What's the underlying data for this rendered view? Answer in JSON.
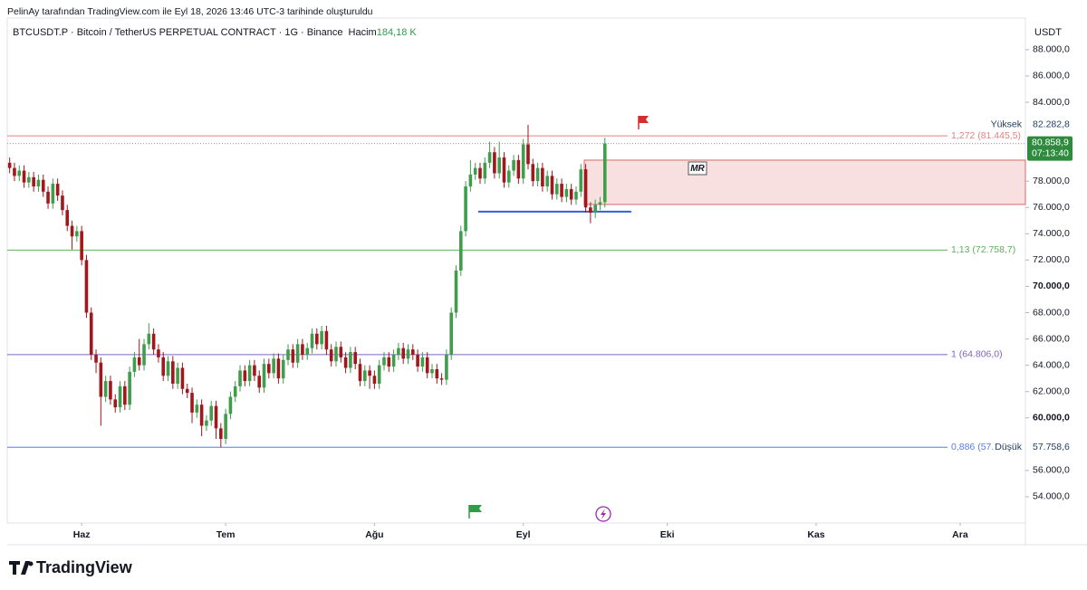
{
  "header": {
    "caption": "PelinAy tarafından TradingView.com ile Eyl 18, 2026 13:46 UTC-3 tarihinde oluşturuldu"
  },
  "chart_data": {
    "type": "candlestick",
    "title": "BTCUSDT.P · Bitcoin / TetherUS PERPETUAL CONTRACT · 1G · Binance",
    "volume_label": "Hacim",
    "volume_value": "184,18 K",
    "currency": "USDT",
    "up_color": "#3f9d4c",
    "down_color": "#a1171e",
    "open": [
      79400,
      79000,
      78400,
      78800,
      77900,
      78300,
      77600,
      78100,
      77200,
      76300,
      77800,
      76900,
      75800,
      74600,
      73800,
      74200,
      72000,
      68000,
      64800,
      64200,
      61600,
      62800,
      61400,
      60800,
      62400,
      61000,
      63500,
      64600,
      64000,
      65600,
      66400,
      65200,
      64600,
      63200,
      64300,
      62600,
      63800,
      62200,
      61900,
      60400,
      61000,
      59400,
      59800,
      60900,
      59200,
      58400,
      60300,
      61600,
      62400,
      63600,
      62800,
      64000,
      63200,
      62300,
      64100,
      63400,
      64500,
      63000,
      64400,
      65200,
      64200,
      65600,
      64800,
      65300,
      66400,
      65600,
      66600,
      65200,
      64300,
      65400,
      64600,
      63800,
      65000,
      64100,
      62800,
      63600,
      63200,
      62600,
      64000,
      64600,
      63900,
      64800,
      65300,
      64500,
      65200,
      64800,
      63900,
      64600,
      63400,
      63700,
      63000,
      62900,
      64800,
      68000,
      71200,
      74200,
      77600,
      78500,
      79000,
      78200,
      79400,
      80200,
      78600,
      79800,
      77900,
      78800,
      79600,
      78200,
      80800,
      79300,
      78000,
      79000,
      77600,
      78400,
      77000,
      77800,
      76800,
      77400,
      76600,
      77200,
      78900,
      76000,
      75600,
      76200,
      76400
    ],
    "high": [
      79800,
      79400,
      79200,
      79200,
      78700,
      78700,
      78500,
      78500,
      77600,
      78200,
      78200,
      77300,
      76200,
      75000,
      74600,
      74600,
      72400,
      68400,
      65200,
      64600,
      63200,
      63200,
      61800,
      62800,
      62800,
      63900,
      65000,
      66000,
      66000,
      67200,
      66800,
      65600,
      65000,
      64700,
      64700,
      64200,
      64200,
      62600,
      62300,
      61400,
      61400,
      60200,
      61300,
      61300,
      59600,
      60700,
      62000,
      62800,
      64000,
      64000,
      64400,
      64400,
      63600,
      64500,
      64500,
      64900,
      64900,
      64800,
      65600,
      65600,
      66000,
      66000,
      65700,
      66800,
      66800,
      67000,
      67000,
      65600,
      65800,
      65800,
      65000,
      65400,
      65400,
      64500,
      64000,
      64000,
      63600,
      64400,
      65000,
      65000,
      65200,
      65700,
      65700,
      65600,
      65600,
      65200,
      65000,
      65000,
      64100,
      64100,
      63400,
      65200,
      68400,
      71600,
      74600,
      78000,
      79600,
      79400,
      79400,
      79800,
      81000,
      80600,
      81000,
      80200,
      79200,
      80000,
      80000,
      81200,
      82282.8,
      79700,
      79400,
      79400,
      78800,
      78800,
      78200,
      78200,
      77800,
      77800,
      77600,
      79300,
      79300,
      76400,
      76600,
      76800,
      81300
    ],
    "low": [
      78600,
      78000,
      78000,
      77500,
      77500,
      77200,
      77200,
      76800,
      75900,
      75900,
      76500,
      75400,
      74200,
      72800,
      73400,
      71600,
      67600,
      64400,
      63400,
      59400,
      61200,
      61000,
      60400,
      60400,
      60600,
      60600,
      63100,
      63600,
      63600,
      65200,
      64800,
      64200,
      62800,
      62800,
      62200,
      62200,
      61800,
      61500,
      59600,
      60000,
      58600,
      59000,
      59400,
      58400,
      57758.6,
      58000,
      59900,
      61200,
      62000,
      62400,
      62400,
      62800,
      61900,
      61900,
      63000,
      63000,
      62600,
      62600,
      64000,
      63800,
      63800,
      64400,
      64400,
      64900,
      65200,
      65200,
      64800,
      63900,
      63900,
      64200,
      63400,
      63400,
      63700,
      62400,
      62400,
      62200,
      62200,
      62200,
      63600,
      63500,
      63500,
      64400,
      64100,
      64100,
      64400,
      63500,
      63500,
      63000,
      63000,
      62600,
      62500,
      62500,
      64400,
      67600,
      70800,
      73800,
      77200,
      78100,
      77800,
      77800,
      79000,
      78200,
      78200,
      77500,
      77500,
      78400,
      77800,
      77800,
      78900,
      77600,
      77600,
      77200,
      77200,
      76600,
      76600,
      76400,
      76400,
      76200,
      76200,
      76800,
      75600,
      74800,
      75200,
      75800,
      76000
    ],
    "close": [
      79000,
      78400,
      78800,
      77900,
      78300,
      77600,
      78100,
      77200,
      76300,
      77800,
      76900,
      75800,
      74600,
      73800,
      74200,
      72000,
      68000,
      64800,
      64200,
      61600,
      62800,
      61400,
      60800,
      62400,
      61000,
      63500,
      64600,
      64000,
      65600,
      66400,
      65200,
      64600,
      63200,
      64300,
      62600,
      63800,
      62200,
      61900,
      60400,
      61000,
      59400,
      59800,
      60900,
      59200,
      58400,
      60300,
      61600,
      62400,
      63600,
      62800,
      64000,
      63200,
      62300,
      64100,
      63400,
      64500,
      63000,
      64400,
      65200,
      64200,
      65600,
      64800,
      65300,
      66400,
      65600,
      66600,
      65200,
      64300,
      65400,
      64600,
      63800,
      65000,
      64100,
      62800,
      63600,
      63200,
      62600,
      64000,
      64600,
      63900,
      64800,
      65300,
      64500,
      65200,
      64800,
      63900,
      64600,
      63400,
      63700,
      63000,
      62900,
      64800,
      68000,
      71200,
      74200,
      77600,
      78500,
      79000,
      78200,
      79400,
      80200,
      78600,
      79800,
      77900,
      78800,
      79600,
      78200,
      80800,
      79300,
      78000,
      79000,
      77600,
      78400,
      77000,
      77800,
      76800,
      77400,
      76600,
      77200,
      78900,
      76000,
      75600,
      76200,
      76400,
      80858.9
    ],
    "xlim": [
      -0.5,
      211.6
    ],
    "xticks": [
      {
        "value": 15,
        "label": "Haz"
      },
      {
        "value": 45,
        "label": "Tem"
      },
      {
        "value": 76,
        "label": "Ağu"
      },
      {
        "value": 107,
        "label": "Eyl"
      },
      {
        "value": 137,
        "label": "Eki"
      },
      {
        "value": 168,
        "label": "Kas"
      },
      {
        "value": 198,
        "label": "Ara"
      }
    ],
    "ylim": [
      52000,
      90400
    ],
    "yticks": [
      {
        "value": 88000,
        "label": "88.000,0"
      },
      {
        "value": 86000,
        "label": "86.000,0"
      },
      {
        "value": 84000,
        "label": "84.000,0"
      },
      {
        "value": 78000,
        "label": "78.000,0"
      },
      {
        "value": 76000,
        "label": "76.000,0"
      },
      {
        "value": 74000,
        "label": "74.000,0"
      },
      {
        "value": 72000,
        "label": "72.000,0"
      },
      {
        "value": 70000,
        "label": "70.000,0"
      },
      {
        "value": 68000,
        "label": "68.000,0"
      },
      {
        "value": 66000,
        "label": "66.000,0"
      },
      {
        "value": 64000,
        "label": "64.000,0"
      },
      {
        "value": 62000,
        "label": "62.000,0"
      },
      {
        "value": 60000,
        "label": "60.000,0"
      },
      {
        "value": 56000,
        "label": "56.000,0"
      },
      {
        "value": 54000,
        "label": "54.000,0"
      }
    ],
    "last_price": {
      "value": 80858.9,
      "label": "80.858,9",
      "countdown": "07:13:40",
      "color": "#2e8b3e"
    },
    "high_marker": {
      "name": "Yüksek",
      "value": 82282.8,
      "label": "82.282,8"
    },
    "low_marker": {
      "name": "Düşük",
      "value": 57758.6,
      "label": "57.758,6"
    },
    "levels": [
      {
        "value": 81445.5,
        "label": "1,272 (81.445,5)",
        "color": "#e88080"
      },
      {
        "value": 72758.7,
        "label": "1,13 (72.758,7)",
        "color": "#5fae5f"
      },
      {
        "value": 64806,
        "label": "1 (64.806,0)",
        "color": "#7e63c9"
      },
      {
        "value": 57760,
        "label": "0,886 (57.",
        "color": "#5b7be0"
      }
    ],
    "zone": {
      "top": 79600,
      "bottom": 76230,
      "start": 119.7,
      "label": "MR",
      "color": "#e06666"
    },
    "support": {
      "value": 75680,
      "start": 97.6,
      "end": 129.5,
      "color": "#2f5fe0"
    }
  },
  "footer": {
    "brand": "TradingView"
  }
}
